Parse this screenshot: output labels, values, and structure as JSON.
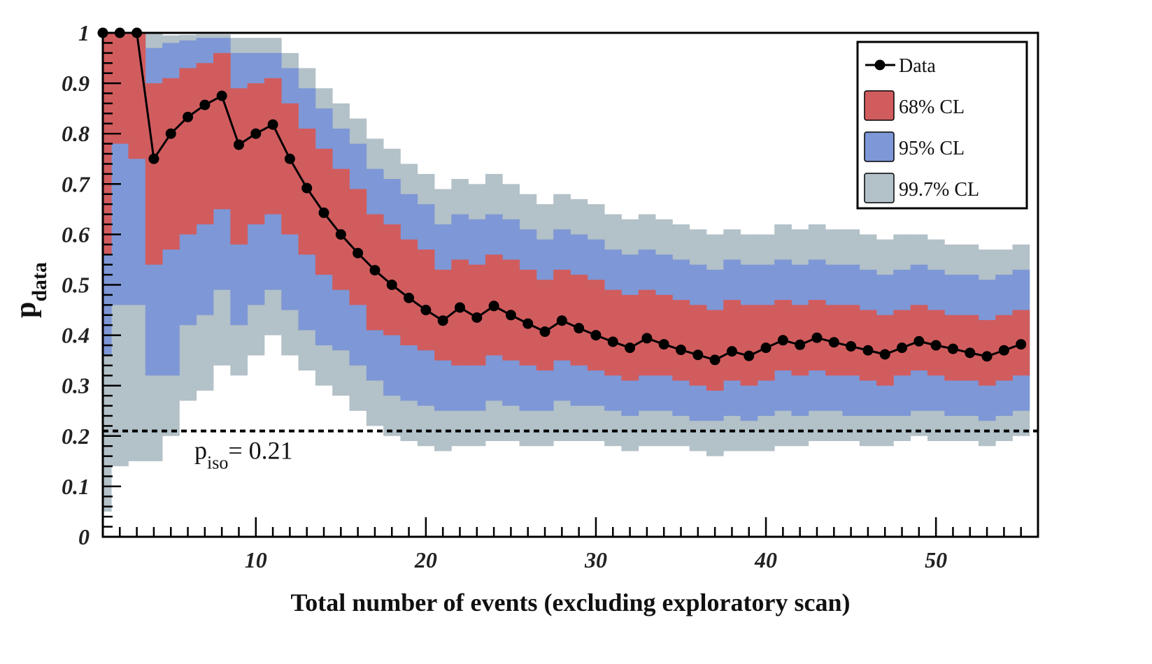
{
  "chart_data": {
    "type": "line",
    "title": "",
    "xlabel": "Total number of events (excluding exploratory scan)",
    "ylabel_main": "p",
    "ylabel_sub": "data",
    "xlim": [
      1,
      56
    ],
    "ylim": [
      0,
      1
    ],
    "x_ticks": [
      10,
      20,
      30,
      40,
      50
    ],
    "x_tick_labels": [
      "10",
      "20",
      "30",
      "40",
      "50"
    ],
    "y_ticks": [
      0,
      0.1,
      0.2,
      0.3,
      0.4,
      0.5,
      0.6,
      0.7,
      0.8,
      0.9,
      1
    ],
    "y_tick_labels": [
      "0",
      "0.1",
      "0.2",
      "0.3",
      "0.4",
      "0.5",
      "0.6",
      "0.7",
      "0.8",
      "0.9",
      "1"
    ],
    "legend": {
      "position": "top-right",
      "entries": [
        "Data",
        "68% CL",
        "95% CL",
        "99.7% CL"
      ]
    },
    "colors": {
      "data": "#000000",
      "cl68": "#d15c5e",
      "cl95": "#7e97d6",
      "cl997": "#b3c1c8",
      "frame": "#000000"
    },
    "reference_line": {
      "y": 0.21,
      "label_main": "p",
      "label_sub": "iso",
      "label_value": "= 0.21"
    },
    "series": [
      {
        "name": "Data",
        "x": [
          1,
          2,
          3,
          4,
          5,
          6,
          7,
          8,
          9,
          10,
          11,
          12,
          13,
          14,
          15,
          16,
          17,
          18,
          19,
          20,
          21,
          22,
          23,
          24,
          25,
          26,
          27,
          28,
          29,
          30,
          31,
          32,
          33,
          34,
          35,
          36,
          37,
          38,
          39,
          40,
          41,
          42,
          43,
          44,
          45,
          46,
          47,
          48,
          49,
          50,
          51,
          52,
          53,
          54,
          55
        ],
        "values": [
          1.0,
          1.0,
          1.0,
          0.75,
          0.8,
          0.833,
          0.857,
          0.875,
          0.778,
          0.8,
          0.818,
          0.75,
          0.692,
          0.643,
          0.6,
          0.563,
          0.529,
          0.5,
          0.474,
          0.45,
          0.429,
          0.455,
          0.435,
          0.458,
          0.44,
          0.423,
          0.407,
          0.429,
          0.414,
          0.4,
          0.387,
          0.375,
          0.394,
          0.382,
          0.371,
          0.361,
          0.351,
          0.368,
          0.359,
          0.375,
          0.39,
          0.381,
          0.395,
          0.386,
          0.378,
          0.37,
          0.362,
          0.375,
          0.388,
          0.38,
          0.373,
          0.365,
          0.358,
          0.37,
          0.382
        ]
      }
    ],
    "bands": {
      "cl68_low": [
        0.56,
        0.78,
        0.75,
        0.54,
        0.57,
        0.6,
        0.62,
        0.65,
        0.58,
        0.62,
        0.64,
        0.6,
        0.56,
        0.52,
        0.49,
        0.46,
        0.41,
        0.4,
        0.38,
        0.37,
        0.35,
        0.34,
        0.34,
        0.36,
        0.35,
        0.34,
        0.33,
        0.35,
        0.34,
        0.33,
        0.32,
        0.31,
        0.32,
        0.32,
        0.31,
        0.3,
        0.29,
        0.31,
        0.3,
        0.31,
        0.33,
        0.32,
        0.33,
        0.32,
        0.32,
        0.31,
        0.3,
        0.32,
        0.33,
        0.32,
        0.31,
        0.31,
        0.3,
        0.31,
        0.32
      ],
      "cl68_high": [
        1.0,
        1.0,
        1.0,
        0.9,
        0.91,
        0.93,
        0.94,
        0.96,
        0.89,
        0.9,
        0.91,
        0.86,
        0.81,
        0.77,
        0.73,
        0.69,
        0.64,
        0.62,
        0.59,
        0.57,
        0.53,
        0.55,
        0.54,
        0.56,
        0.55,
        0.53,
        0.51,
        0.53,
        0.52,
        0.51,
        0.49,
        0.48,
        0.49,
        0.48,
        0.47,
        0.46,
        0.45,
        0.47,
        0.46,
        0.46,
        0.47,
        0.46,
        0.47,
        0.46,
        0.46,
        0.45,
        0.44,
        0.45,
        0.46,
        0.45,
        0.44,
        0.44,
        0.43,
        0.44,
        0.45
      ],
      "cl95_low": [
        0.36,
        0.46,
        0.46,
        0.32,
        0.32,
        0.42,
        0.44,
        0.49,
        0.42,
        0.46,
        0.49,
        0.45,
        0.41,
        0.38,
        0.37,
        0.34,
        0.31,
        0.28,
        0.27,
        0.26,
        0.25,
        0.25,
        0.25,
        0.27,
        0.26,
        0.25,
        0.25,
        0.27,
        0.26,
        0.26,
        0.25,
        0.24,
        0.25,
        0.25,
        0.24,
        0.23,
        0.23,
        0.24,
        0.23,
        0.24,
        0.25,
        0.24,
        0.25,
        0.25,
        0.24,
        0.24,
        0.24,
        0.24,
        0.25,
        0.25,
        0.24,
        0.24,
        0.23,
        0.24,
        0.25
      ],
      "cl95_high": [
        1.0,
        1.0,
        1.0,
        0.97,
        0.98,
        0.985,
        0.99,
        0.99,
        0.96,
        0.96,
        0.96,
        0.93,
        0.89,
        0.85,
        0.81,
        0.78,
        0.73,
        0.71,
        0.68,
        0.66,
        0.62,
        0.64,
        0.63,
        0.64,
        0.63,
        0.61,
        0.59,
        0.61,
        0.6,
        0.59,
        0.57,
        0.56,
        0.57,
        0.56,
        0.55,
        0.54,
        0.53,
        0.55,
        0.54,
        0.54,
        0.55,
        0.54,
        0.55,
        0.54,
        0.54,
        0.53,
        0.52,
        0.53,
        0.54,
        0.53,
        0.52,
        0.52,
        0.51,
        0.52,
        0.53
      ],
      "cl997_low": [
        0.05,
        0.14,
        0.15,
        0.15,
        0.2,
        0.27,
        0.29,
        0.34,
        0.32,
        0.36,
        0.4,
        0.36,
        0.33,
        0.3,
        0.28,
        0.25,
        0.22,
        0.2,
        0.19,
        0.18,
        0.17,
        0.18,
        0.18,
        0.19,
        0.19,
        0.18,
        0.18,
        0.19,
        0.19,
        0.19,
        0.18,
        0.17,
        0.18,
        0.18,
        0.18,
        0.17,
        0.16,
        0.17,
        0.17,
        0.17,
        0.18,
        0.18,
        0.19,
        0.19,
        0.19,
        0.18,
        0.18,
        0.19,
        0.2,
        0.19,
        0.19,
        0.19,
        0.18,
        0.19,
        0.2
      ],
      "cl997_high": [
        1.0,
        1.0,
        1.0,
        1.0,
        0.995,
        0.996,
        0.997,
        0.997,
        0.99,
        0.99,
        0.99,
        0.96,
        0.93,
        0.89,
        0.86,
        0.83,
        0.79,
        0.77,
        0.74,
        0.72,
        0.69,
        0.71,
        0.7,
        0.72,
        0.7,
        0.68,
        0.66,
        0.68,
        0.67,
        0.66,
        0.64,
        0.63,
        0.64,
        0.63,
        0.62,
        0.61,
        0.6,
        0.61,
        0.6,
        0.6,
        0.62,
        0.61,
        0.62,
        0.61,
        0.61,
        0.6,
        0.59,
        0.6,
        0.6,
        0.59,
        0.58,
        0.58,
        0.57,
        0.57,
        0.58
      ]
    }
  }
}
